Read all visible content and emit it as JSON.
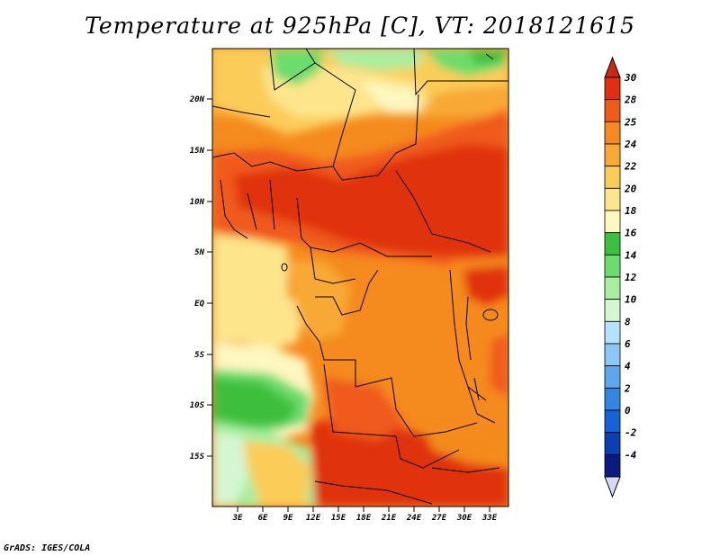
{
  "title": "Temperature at 925hPa [C], VT: 2018121615",
  "credit": "GrADS: IGES/COLA",
  "map": {
    "lat_ticks": [
      "20N",
      "15N",
      "10N",
      "5N",
      "EQ",
      "5S",
      "10S",
      "15S"
    ],
    "lon_ticks": [
      "3E",
      "6E",
      "9E",
      "12E",
      "15E",
      "18E",
      "21E",
      "24E",
      "27E",
      "30E",
      "33E"
    ]
  },
  "colorbar": {
    "labels": [
      "30",
      "28",
      "25",
      "24",
      "22",
      "20",
      "18",
      "16",
      "14",
      "12",
      "10",
      "8",
      "6",
      "4",
      "2",
      "0",
      "-2",
      "-4"
    ],
    "colors": [
      "#e03010",
      "#f05a1a",
      "#f58a1e",
      "#f8a935",
      "#fbcc58",
      "#fde58c",
      "#fdf7c0",
      "#3cbf3c",
      "#6cdc6c",
      "#a8eea0",
      "#d4f6d0",
      "#b4e2fa",
      "#8cc6f4",
      "#5ca6ee",
      "#3484e4",
      "#1662d6",
      "#0a40b4",
      "#0a1a80"
    ],
    "top_arrow_color": "#c8281a",
    "bottom_arrow_color": "#d8d8f4"
  }
}
